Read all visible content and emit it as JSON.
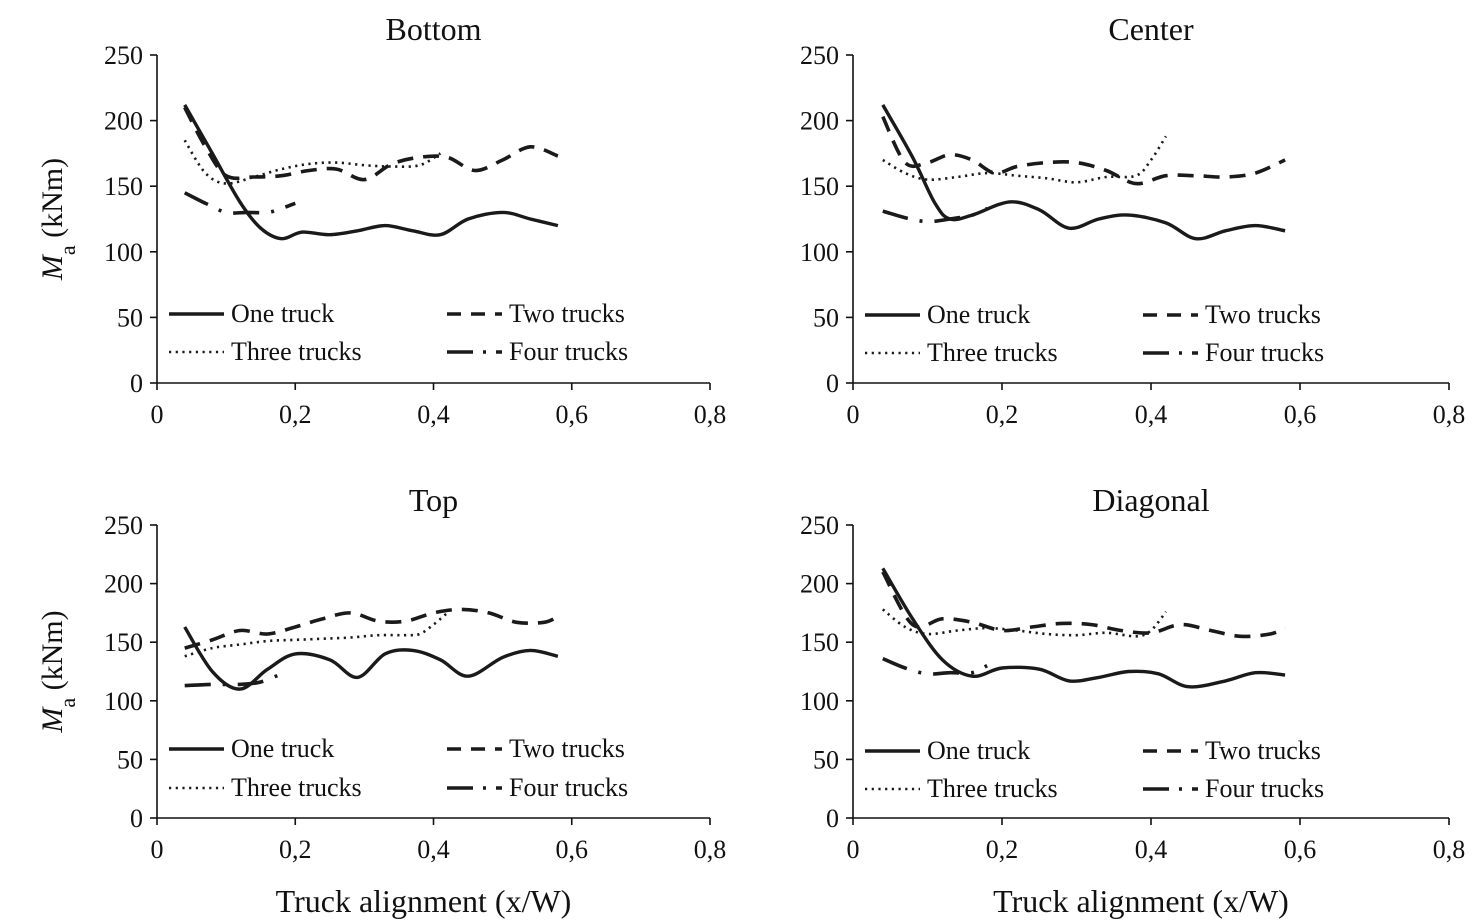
{
  "xlabel": "Truck alignment (x/W)",
  "ylabel_main": "M",
  "ylabel_sub": "a",
  "ylabel_unit": " (kNm)",
  "legend": [
    "One truck",
    "Two trucks",
    "Three trucks",
    "Four trucks"
  ],
  "chart_data": [
    {
      "type": "line",
      "title": "Bottom",
      "xlim": [
        0,
        0.8
      ],
      "ylim": [
        0,
        250
      ],
      "x_ticks": [
        "0",
        "0,2",
        "0,4",
        "0,6",
        "0,8"
      ],
      "y_ticks": [
        "0",
        "50",
        "100",
        "150",
        "200",
        "250"
      ],
      "series": [
        {
          "name": "One truck",
          "style": "solid",
          "x": [
            0.04,
            0.08,
            0.12,
            0.15,
            0.18,
            0.21,
            0.25,
            0.29,
            0.33,
            0.37,
            0.41,
            0.45,
            0.5,
            0.54,
            0.58
          ],
          "values": [
            212,
            175,
            138,
            118,
            110,
            115,
            113,
            116,
            120,
            116,
            113,
            125,
            130,
            125,
            120
          ]
        },
        {
          "name": "Two trucks",
          "style": "dashed",
          "x": [
            0.04,
            0.07,
            0.1,
            0.14,
            0.18,
            0.22,
            0.26,
            0.3,
            0.34,
            0.38,
            0.42,
            0.46,
            0.5,
            0.54,
            0.58
          ],
          "values": [
            210,
            180,
            158,
            157,
            158,
            162,
            163,
            155,
            167,
            172,
            172,
            162,
            170,
            180,
            173
          ]
        },
        {
          "name": "Three trucks",
          "style": "dotted",
          "x": [
            0.04,
            0.07,
            0.1,
            0.14,
            0.18,
            0.22,
            0.26,
            0.3,
            0.34,
            0.38,
            0.41
          ],
          "values": [
            185,
            160,
            152,
            157,
            163,
            167,
            168,
            166,
            165,
            166,
            175
          ]
        },
        {
          "name": "Four trucks",
          "style": "dashdot",
          "x": [
            0.04,
            0.07,
            0.1,
            0.13,
            0.16,
            0.18,
            0.2
          ],
          "values": [
            145,
            137,
            130,
            130,
            130,
            133,
            137
          ]
        }
      ]
    },
    {
      "type": "line",
      "title": "Center",
      "xlim": [
        0,
        0.8
      ],
      "ylim": [
        0,
        250
      ],
      "x_ticks": [
        "0",
        "0,2",
        "0,4",
        "0,6",
        "0,8"
      ],
      "y_ticks": [
        "0",
        "50",
        "100",
        "150",
        "200",
        "250"
      ],
      "series": [
        {
          "name": "One truck",
          "style": "solid",
          "x": [
            0.04,
            0.08,
            0.11,
            0.13,
            0.16,
            0.21,
            0.25,
            0.29,
            0.33,
            0.37,
            0.42,
            0.46,
            0.5,
            0.54,
            0.58
          ],
          "values": [
            212,
            172,
            137,
            125,
            128,
            138,
            132,
            118,
            125,
            128,
            122,
            110,
            116,
            120,
            116
          ]
        },
        {
          "name": "Two trucks",
          "style": "dashed",
          "x": [
            0.04,
            0.07,
            0.1,
            0.13,
            0.16,
            0.19,
            0.22,
            0.26,
            0.3,
            0.34,
            0.38,
            0.42,
            0.46,
            0.5,
            0.54,
            0.58
          ],
          "values": [
            203,
            168,
            168,
            174,
            170,
            160,
            165,
            168,
            168,
            162,
            152,
            158,
            158,
            157,
            160,
            170
          ]
        },
        {
          "name": "Three trucks",
          "style": "dotted",
          "x": [
            0.04,
            0.07,
            0.1,
            0.14,
            0.18,
            0.22,
            0.26,
            0.3,
            0.34,
            0.38,
            0.4,
            0.42
          ],
          "values": [
            170,
            160,
            155,
            157,
            160,
            158,
            156,
            153,
            157,
            158,
            170,
            188
          ]
        },
        {
          "name": "Four trucks",
          "style": "dashdot",
          "x": [
            0.04,
            0.07,
            0.1,
            0.13,
            0.16,
            0.18
          ],
          "values": [
            131,
            126,
            123,
            125,
            128,
            133
          ]
        }
      ]
    },
    {
      "type": "line",
      "title": "Top",
      "xlim": [
        0,
        0.8
      ],
      "ylim": [
        0,
        250
      ],
      "x_ticks": [
        "0",
        "0,2",
        "0,4",
        "0,6",
        "0,8"
      ],
      "y_ticks": [
        "0",
        "50",
        "100",
        "150",
        "200",
        "250"
      ],
      "series": [
        {
          "name": "One truck",
          "style": "solid",
          "x": [
            0.04,
            0.08,
            0.12,
            0.16,
            0.2,
            0.25,
            0.29,
            0.33,
            0.37,
            0.41,
            0.45,
            0.5,
            0.54,
            0.58
          ],
          "values": [
            163,
            125,
            110,
            127,
            140,
            135,
            120,
            140,
            143,
            135,
            121,
            137,
            143,
            138
          ]
        },
        {
          "name": "Two trucks",
          "style": "dashed",
          "x": [
            0.04,
            0.08,
            0.12,
            0.16,
            0.2,
            0.24,
            0.28,
            0.32,
            0.36,
            0.4,
            0.44,
            0.48,
            0.52,
            0.56,
            0.58
          ],
          "values": [
            145,
            152,
            160,
            157,
            163,
            170,
            175,
            168,
            168,
            175,
            178,
            175,
            167,
            167,
            172
          ]
        },
        {
          "name": "Three trucks",
          "style": "dotted",
          "x": [
            0.04,
            0.08,
            0.12,
            0.16,
            0.2,
            0.24,
            0.28,
            0.32,
            0.36,
            0.38,
            0.4,
            0.42
          ],
          "values": [
            138,
            145,
            148,
            151,
            152,
            153,
            154,
            156,
            156,
            157,
            165,
            175
          ]
        },
        {
          "name": "Four trucks",
          "style": "dashdot",
          "x": [
            0.04,
            0.08,
            0.12,
            0.15,
            0.18
          ],
          "values": [
            113,
            114,
            114,
            116,
            123
          ]
        }
      ]
    },
    {
      "type": "line",
      "title": "Diagonal",
      "xlim": [
        0,
        0.8
      ],
      "ylim": [
        0,
        250
      ],
      "x_ticks": [
        "0",
        "0,2",
        "0,4",
        "0,6",
        "0,8"
      ],
      "y_ticks": [
        "0",
        "50",
        "100",
        "150",
        "200",
        "250"
      ],
      "series": [
        {
          "name": "One truck",
          "style": "solid",
          "x": [
            0.04,
            0.08,
            0.12,
            0.16,
            0.2,
            0.25,
            0.29,
            0.33,
            0.37,
            0.41,
            0.45,
            0.5,
            0.54,
            0.58
          ],
          "values": [
            213,
            170,
            135,
            121,
            128,
            127,
            117,
            120,
            125,
            123,
            112,
            117,
            124,
            122
          ]
        },
        {
          "name": "Two trucks",
          "style": "dashed",
          "x": [
            0.04,
            0.08,
            0.12,
            0.16,
            0.2,
            0.24,
            0.28,
            0.32,
            0.36,
            0.4,
            0.44,
            0.48,
            0.52,
            0.56,
            0.58
          ],
          "values": [
            210,
            165,
            170,
            167,
            160,
            163,
            166,
            165,
            160,
            158,
            165,
            160,
            155,
            157,
            162
          ]
        },
        {
          "name": "Three trucks",
          "style": "dotted",
          "x": [
            0.04,
            0.07,
            0.1,
            0.14,
            0.18,
            0.22,
            0.26,
            0.3,
            0.34,
            0.38,
            0.4,
            0.42
          ],
          "values": [
            178,
            163,
            157,
            160,
            162,
            160,
            157,
            156,
            158,
            155,
            160,
            176
          ]
        },
        {
          "name": "Four trucks",
          "style": "dashdot",
          "x": [
            0.04,
            0.07,
            0.1,
            0.13,
            0.16,
            0.18
          ],
          "values": [
            136,
            128,
            123,
            124,
            124,
            130
          ]
        }
      ]
    }
  ]
}
